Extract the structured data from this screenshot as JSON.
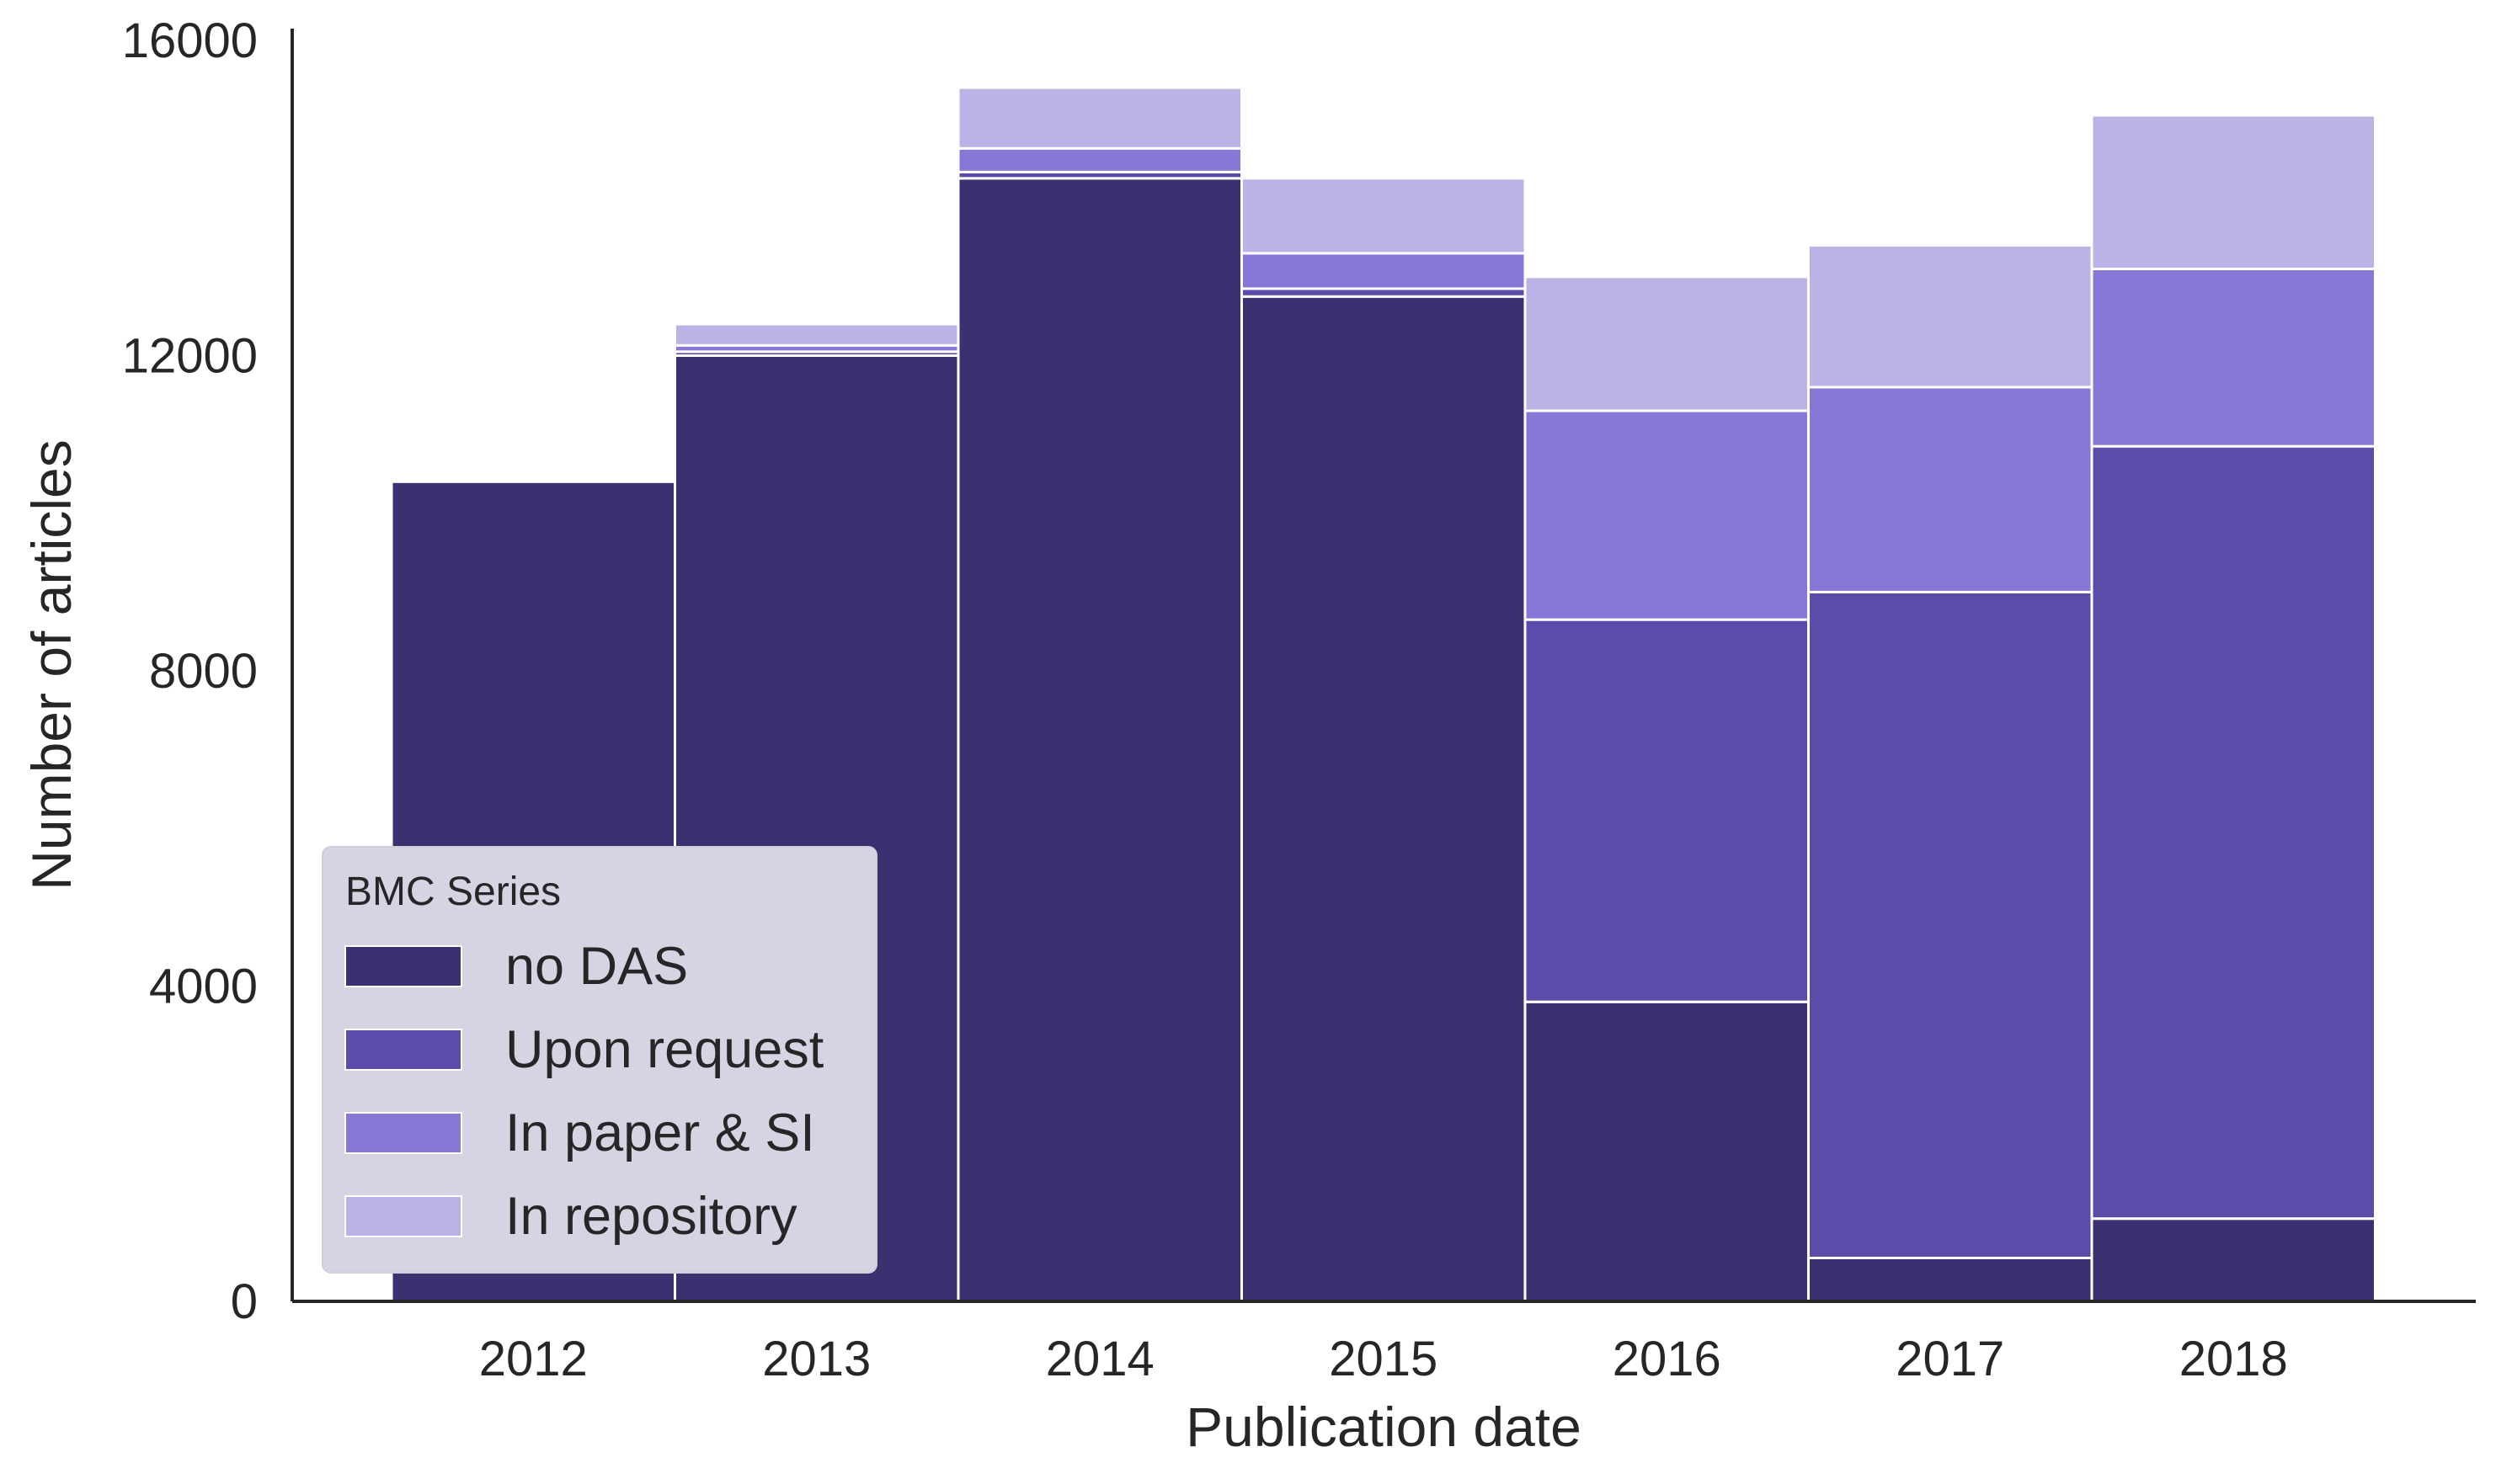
{
  "chart_data": {
    "type": "bar",
    "stacked": true,
    "xlabel": "Publication date",
    "ylabel": "Number of articles",
    "ylim": [
      0,
      16000
    ],
    "yticks": [
      0,
      4000,
      8000,
      12000,
      16000
    ],
    "categories": [
      "2012",
      "2013",
      "2014",
      "2015",
      "2016",
      "2017",
      "2018"
    ],
    "series": [
      {
        "name": "no DAS",
        "color": "#3b3170",
        "values": [
          10400,
          12000,
          14250,
          12750,
          3800,
          550,
          1050
        ]
      },
      {
        "name": "Upon request",
        "color": "#5a4ca8",
        "values": [
          0,
          50,
          80,
          100,
          4850,
          8450,
          9800
        ]
      },
      {
        "name": "In paper & SI",
        "color": "#8678d6",
        "values": [
          0,
          80,
          300,
          450,
          2650,
          2600,
          2250
        ]
      },
      {
        "name": "In repository",
        "color": "#bab3e6",
        "values": [
          0,
          270,
          770,
          950,
          1700,
          1800,
          1950
        ]
      }
    ],
    "legend": {
      "title": "BMC Series",
      "placement": "lower-left"
    },
    "grid": false
  }
}
